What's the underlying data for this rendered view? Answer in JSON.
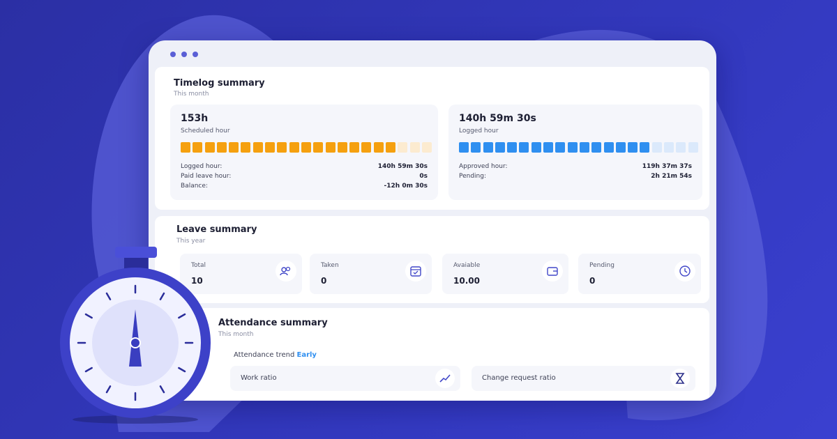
{
  "timelog": {
    "title": "Timelog summary",
    "subtitle": "This month",
    "cards": [
      {
        "value": "153h",
        "label": "Scheduled hour",
        "color": "#f5a00f",
        "empty_color": "#fcebd0",
        "segments": {
          "filled": 18,
          "total": 21
        },
        "rows": [
          [
            "Logged hour:",
            "140h 59m 30s"
          ],
          [
            "Paid leave hour:",
            "0s"
          ],
          [
            "Balance:",
            "-12h 0m 30s"
          ]
        ]
      },
      {
        "value": "140h 59m 30s",
        "label": "Logged hour",
        "color": "#2f8ff0",
        "empty_color": "#dbe9fb",
        "segments": {
          "filled": 16,
          "total": 20
        },
        "rows": [
          [
            "Approved hour:",
            "119h 37m 37s"
          ],
          [
            "Pending:",
            "2h 21m 54s"
          ]
        ]
      }
    ]
  },
  "leave": {
    "title": "Leave summary",
    "subtitle": "This year",
    "items": [
      {
        "label": "Total",
        "value": "10"
      },
      {
        "label": "Taken",
        "value": "0"
      },
      {
        "label": "Avaiable",
        "value": "10.00"
      },
      {
        "label": "Pending",
        "value": "0"
      }
    ]
  },
  "attendance": {
    "title": "Attendance summary",
    "subtitle": "This month",
    "trend_label": "Attendance trend",
    "trend_value": "Early",
    "items": [
      "Work ratio",
      "Change request ratio"
    ]
  }
}
